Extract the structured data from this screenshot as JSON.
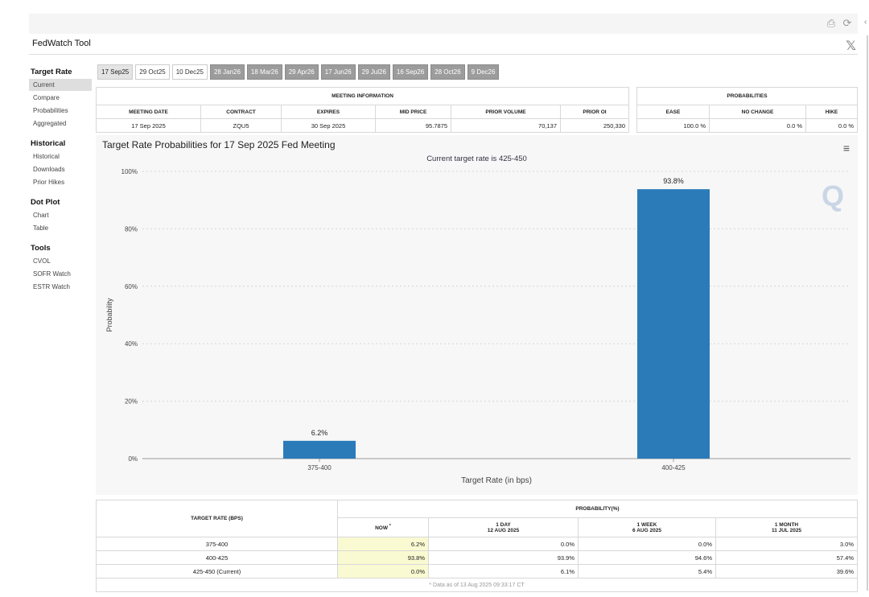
{
  "app": {
    "title": "FedWatch Tool",
    "x_icon": "𝕏"
  },
  "top_icons": [
    {
      "name": "pdf-icon",
      "glyph": "⎙"
    },
    {
      "name": "refresh-icon",
      "glyph": "⟳"
    }
  ],
  "sidebar": {
    "sections": [
      {
        "title": "Target Rate",
        "items": [
          "Current",
          "Compare",
          "Probabilities",
          "Aggregated"
        ]
      },
      {
        "title": "Historical",
        "items": [
          "Historical",
          "Downloads",
          "Prior Hikes"
        ]
      },
      {
        "title": "Dot Plot",
        "items": [
          "Chart",
          "Table"
        ]
      },
      {
        "title": "Tools",
        "items": [
          "CVOL",
          "SOFR Watch",
          "ESTR Watch"
        ]
      }
    ],
    "active_item": "Current"
  },
  "tabs": [
    "17 Sep25",
    "29 Oct25",
    "10 Dec25",
    "28 Jan26",
    "18 Mar26",
    "29 Apr26",
    "17 Jun26",
    "29 Jul26",
    "16 Sep26",
    "28 Oct26",
    "9 Dec26"
  ],
  "meeting_info": {
    "header": "MEETING INFORMATION",
    "columns": [
      "MEETING DATE",
      "CONTRACT",
      "EXPIRES",
      "MID PRICE",
      "PRIOR VOLUME",
      "PRIOR OI"
    ],
    "row": [
      "17 Sep 2025",
      "ZQU5",
      "30 Sep 2025",
      "95.7875",
      "70,137",
      "250,330"
    ]
  },
  "probabilities": {
    "header": "PROBABILITIES",
    "columns": [
      "EASE",
      "NO CHANGE",
      "HIKE"
    ],
    "row": [
      "100.0 %",
      "0.0 %",
      "0.0 %"
    ]
  },
  "chart_data": {
    "type": "bar",
    "title": "Target Rate Probabilities for 17 Sep 2025 Fed Meeting",
    "subtitle": "Current target rate is 425-450",
    "xlabel": "Target Rate (in bps)",
    "ylabel": "Probability",
    "categories": [
      "375-400",
      "400-425"
    ],
    "values": [
      6.2,
      93.8
    ],
    "data_labels": [
      "6.2%",
      "93.8%"
    ],
    "ylim": [
      0,
      100
    ],
    "yticks": [
      0,
      20,
      40,
      60,
      80,
      100
    ],
    "ytick_labels": [
      "0%",
      "20%",
      "40%",
      "60%",
      "80%",
      "100%"
    ],
    "bar_color": "#2b7bb9",
    "grid": true
  },
  "bottom_table": {
    "col_header": "TARGET RATE (BPS)",
    "prob_header": "PROBABILITY(%)",
    "sub_columns": [
      {
        "line1": "NOW",
        "line2": "",
        "mark": "*"
      },
      {
        "line1": "1 DAY",
        "line2": "12 AUG 2025",
        "mark": ""
      },
      {
        "line1": "1 WEEK",
        "line2": "6 AUG 2025",
        "mark": ""
      },
      {
        "line1": "1 MONTH",
        "line2": "11 JUL 2025",
        "mark": ""
      }
    ],
    "rows": [
      {
        "rate": "375-400",
        "values": [
          "6.2%",
          "0.0%",
          "0.0%",
          "3.0%"
        ]
      },
      {
        "rate": "400-425",
        "values": [
          "93.8%",
          "93.9%",
          "94.6%",
          "57.4%"
        ]
      },
      {
        "rate": "425-450 (Current)",
        "values": [
          "0.0%",
          "6.1%",
          "5.4%",
          "39.6%"
        ]
      }
    ],
    "footnote": "* Data as of 13 Aug 2025 09:33:17 CT"
  }
}
